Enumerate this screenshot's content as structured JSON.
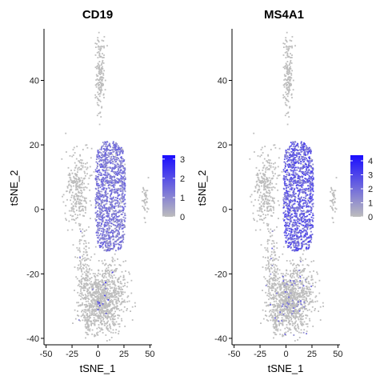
{
  "chart_data": [
    {
      "type": "scatter",
      "title": "CD19",
      "xlabel": "tSNE_1",
      "ylabel": "tSNE_2",
      "xlim": [
        -52,
        52
      ],
      "ylim": [
        -42,
        56
      ],
      "xticks": [
        -50,
        -25,
        0,
        25,
        50
      ],
      "yticks": [
        -40,
        -20,
        0,
        20,
        40
      ],
      "colorbar": {
        "min": 0,
        "max": 3.2,
        "ticks": [
          0,
          1,
          2,
          3
        ],
        "low_color": "#bdbdbd",
        "high_color": "#1a0dff"
      },
      "clusters": [
        {
          "cx": 12,
          "cy": 4,
          "sx": 10,
          "sy": 10,
          "n": 1300,
          "level": 1.3
        },
        {
          "cx": 5,
          "cy": -28,
          "sx": 14,
          "sy": 7,
          "n": 1000,
          "level": 0.02
        },
        {
          "cx": 2,
          "cy": 42,
          "sx": 3,
          "sy": 8,
          "n": 170,
          "level": 0
        },
        {
          "cx": -19,
          "cy": 6,
          "sx": 8,
          "sy": 8,
          "n": 300,
          "level": 0
        },
        {
          "cx": -14,
          "cy": -18,
          "sx": 5,
          "sy": 7,
          "n": 130,
          "level": 0.02
        },
        {
          "cx": -10,
          "cy": -35,
          "sx": 3,
          "sy": 3,
          "n": 50,
          "level": 0
        },
        {
          "cx": 46,
          "cy": 3,
          "sx": 2,
          "sy": 4,
          "n": 40,
          "level": 0
        }
      ]
    },
    {
      "type": "scatter",
      "title": "MS4A1",
      "xlabel": "tSNE_1",
      "ylabel": "tSNE_2",
      "xlim": [
        -52,
        52
      ],
      "ylim": [
        -42,
        56
      ],
      "xticks": [
        -50,
        -25,
        0,
        25,
        50
      ],
      "yticks": [
        -40,
        -20,
        0,
        20,
        40
      ],
      "colorbar": {
        "min": 0,
        "max": 4.4,
        "ticks": [
          0,
          1,
          2,
          3,
          4
        ],
        "low_color": "#bdbdbd",
        "high_color": "#1a0dff"
      },
      "clusters": [
        {
          "cx": 12,
          "cy": 4,
          "sx": 10,
          "sy": 10,
          "n": 1300,
          "level": 2.4
        },
        {
          "cx": 5,
          "cy": -28,
          "sx": 14,
          "sy": 7,
          "n": 1000,
          "level": 0.05
        },
        {
          "cx": 2,
          "cy": 42,
          "sx": 3,
          "sy": 8,
          "n": 170,
          "level": 0
        },
        {
          "cx": -19,
          "cy": 6,
          "sx": 8,
          "sy": 8,
          "n": 300,
          "level": 0
        },
        {
          "cx": -14,
          "cy": -18,
          "sx": 5,
          "sy": 7,
          "n": 130,
          "level": 0.05
        },
        {
          "cx": -10,
          "cy": -35,
          "sx": 3,
          "sy": 3,
          "n": 50,
          "level": 0
        },
        {
          "cx": 46,
          "cy": 3,
          "sx": 2,
          "sy": 4,
          "n": 40,
          "level": 0
        }
      ]
    }
  ]
}
